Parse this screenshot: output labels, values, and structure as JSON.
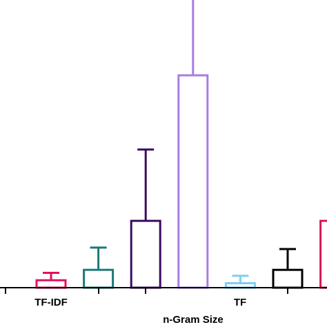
{
  "chart_data": {
    "type": "bar",
    "title": "",
    "xlabel": "n-Gram Size",
    "ylabel": "",
    "grid": false,
    "legend": "none",
    "group_labels": [
      "TF-IDF",
      "TF"
    ],
    "bars": [
      {
        "group": "TF-IDF",
        "value": 0.5,
        "error": 0.5,
        "color": "#e0115f"
      },
      {
        "group": "TF-IDF",
        "value": 1.2,
        "error": 1.5,
        "color": "#1a7a78"
      },
      {
        "group": "TF-IDF",
        "value": 4.5,
        "error": 4.8,
        "color": "#3b0a5e"
      },
      {
        "group": "TF-IDF",
        "value": 14.3,
        "error": 14.5,
        "color": "#a77de0"
      },
      {
        "group": "TF",
        "value": 0.3,
        "error": 0.5,
        "color": "#7ecef0"
      },
      {
        "group": "TF",
        "value": 1.2,
        "error": 1.4,
        "color": "#000000"
      },
      {
        "group": "TF",
        "value": 4.5,
        "error": 0,
        "color": "#d4175a"
      }
    ],
    "ylim": [
      0,
      19
    ]
  }
}
